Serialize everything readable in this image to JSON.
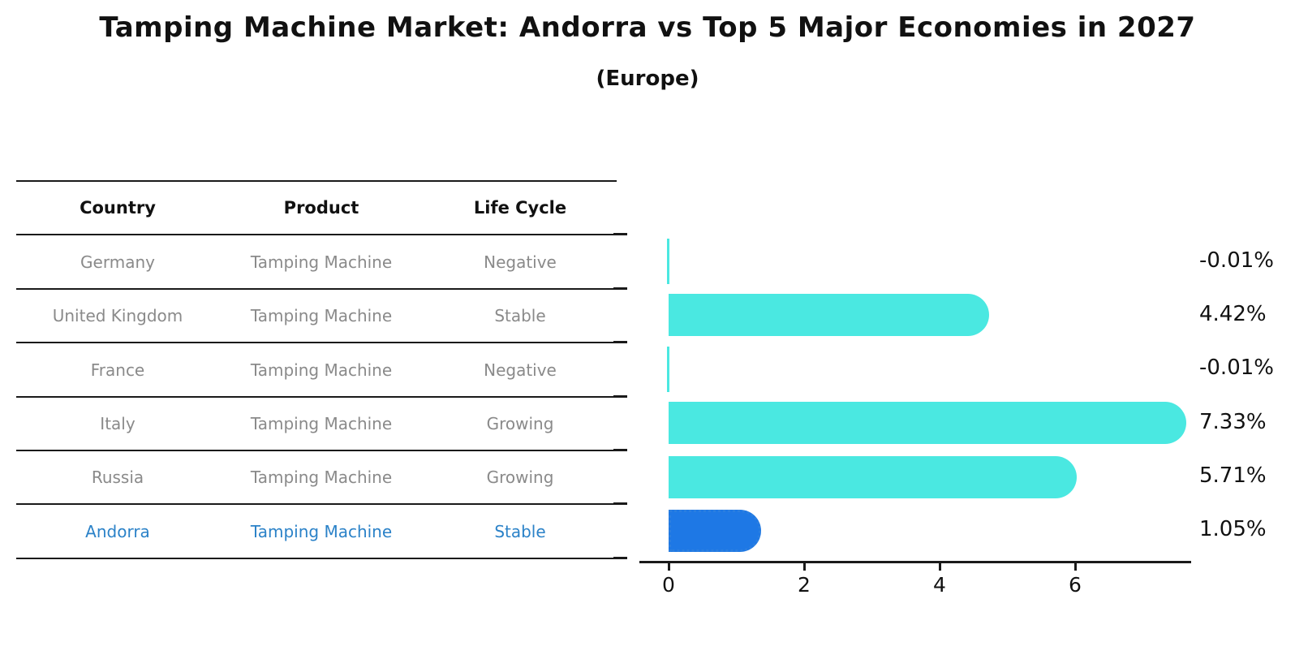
{
  "title": "Tamping Machine Market: Andorra vs Top 5 Major Economies in 2027",
  "subtitle": "(Europe)",
  "colors": {
    "bar_default": "#4ae8e1",
    "bar_highlight": "#1e78e5",
    "bar_highlight_border": "#2b7fe0",
    "highlight_text": "#2b82c8",
    "row_text": "#8a8a8a",
    "heading_text": "#111111",
    "line": "#1a1a1a"
  },
  "table": {
    "headers": [
      "Country",
      "Product",
      "Life Cycle"
    ],
    "rows": [
      {
        "country": "Germany",
        "product": "Tamping Machine",
        "life_cycle": "Negative",
        "highlight": false
      },
      {
        "country": "United Kingdom",
        "product": "Tamping Machine",
        "life_cycle": "Stable",
        "highlight": false
      },
      {
        "country": "France",
        "product": "Tamping Machine",
        "life_cycle": "Negative",
        "highlight": false
      },
      {
        "country": "Italy",
        "product": "Tamping Machine",
        "life_cycle": "Growing",
        "highlight": false
      },
      {
        "country": "Russia",
        "product": "Tamping Machine",
        "life_cycle": "Growing",
        "highlight": false
      },
      {
        "country": "Andorra",
        "product": "Tamping Machine",
        "life_cycle": "Stable",
        "highlight": true
      }
    ]
  },
  "chart_data": {
    "type": "bar",
    "orientation": "horizontal",
    "title": "Tamping Machine Market: Andorra vs Top 5 Major Economies in 2027 (Europe)",
    "categories": [
      "Germany",
      "United Kingdom",
      "France",
      "Italy",
      "Russia",
      "Andorra"
    ],
    "values": [
      -0.01,
      4.42,
      -0.01,
      7.33,
      5.71,
      1.05
    ],
    "value_labels": [
      "-0.01%",
      "4.42%",
      "-0.01%",
      "7.33%",
      "5.71%",
      "1.05%"
    ],
    "unit": "percent",
    "highlight_category": "Andorra",
    "xticks": [
      0,
      2,
      4,
      6
    ],
    "xlim": [
      -0.45,
      7.7
    ],
    "grid": false,
    "legend": false
  }
}
